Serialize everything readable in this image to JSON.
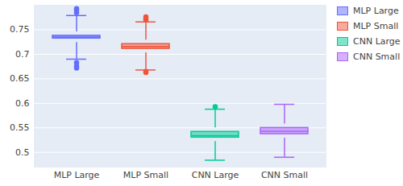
{
  "chart_data": {
    "type": "box",
    "ylim": [
      0.47,
      0.8
    ],
    "yticks": [
      0.5,
      0.55,
      0.6,
      0.65,
      0.7,
      0.75
    ],
    "grid": true,
    "legend": "top-right",
    "series": [
      {
        "name": "MLP Large",
        "color": "#636efa",
        "q1": 0.724,
        "median": 0.735,
        "q3": 0.746,
        "whisker_low": 0.69,
        "whisker_high": 0.779,
        "outliers": [
          0.672,
          0.676,
          0.683,
          0.785,
          0.79,
          0.793
        ]
      },
      {
        "name": "MLP Small",
        "color": "#ef553b",
        "q1": 0.703,
        "median": 0.716,
        "q3": 0.729,
        "whisker_low": 0.668,
        "whisker_high": 0.766,
        "outliers": [
          0.663,
          0.665,
          0.77,
          0.773,
          0.776
        ]
      },
      {
        "name": "CNN Large",
        "color": "#00cc96",
        "q1": 0.522,
        "median": 0.534,
        "q3": 0.55,
        "whisker_low": 0.484,
        "whisker_high": 0.588,
        "outliers": [
          0.593
        ]
      },
      {
        "name": "CNN Small",
        "color": "#ab63fa",
        "q1": 0.529,
        "median": 0.543,
        "q3": 0.558,
        "whisker_low": 0.49,
        "whisker_high": 0.598,
        "outliers": []
      }
    ]
  }
}
